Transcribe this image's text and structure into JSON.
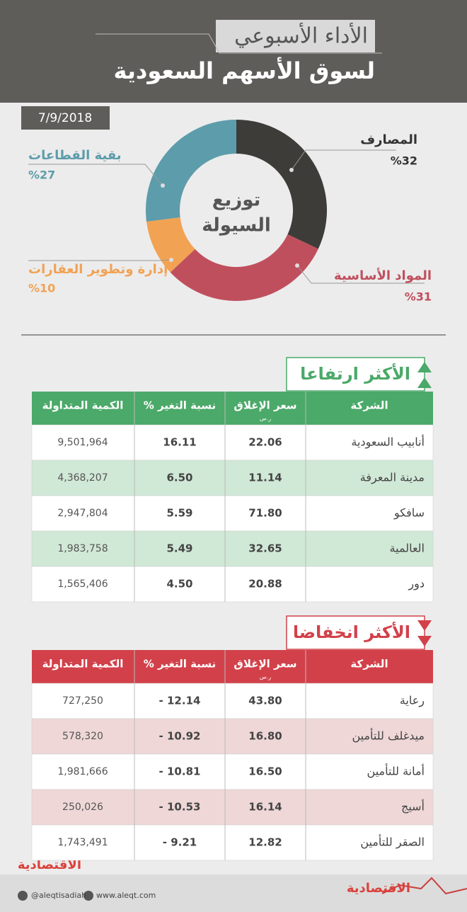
{
  "header": {
    "title": "الأداء الأسبوعي",
    "subtitle": "لسوق الأسهم السعودية"
  },
  "date": "7/9/2018",
  "chart_data": {
    "type": "donut",
    "center_label": [
      "توزيع",
      "السيولة"
    ],
    "categories": [
      "المصارف",
      "المواد الأساسية",
      "إدارة وتطوير العقارات",
      "بقية القطاعات"
    ],
    "values": [
      32,
      31,
      10,
      27
    ],
    "value_labels": [
      "%32",
      "%31",
      "%10",
      "%27"
    ],
    "colors": [
      "#3e3c39",
      "#c04f5d",
      "#f2a253",
      "#5d9cab"
    ]
  },
  "rising": {
    "title": "الأكثر ارتفاعا",
    "headers": [
      "الشركة",
      "سعر الإغلاق",
      "نسبة التغير %",
      "الكمية المتداولة"
    ],
    "currency": "ر.س",
    "rows": [
      [
        "أنابيب السعودية",
        "22.06",
        "16.11",
        "9,501,964"
      ],
      [
        "مدينة المعرفة",
        "11.14",
        "6.50",
        "4,368,207"
      ],
      [
        "سافكو",
        "71.80",
        "5.59",
        "2,947,804"
      ],
      [
        "العالمية",
        "32.65",
        "5.49",
        "1,983,758"
      ],
      [
        "دور",
        "20.88",
        "4.50",
        "1,565,406"
      ]
    ]
  },
  "falling": {
    "title": "الأكثر انخفاضا",
    "headers": [
      "الشركة",
      "سعر الإغلاق",
      "نسبة التغير %",
      "الكمية المتداولة"
    ],
    "currency": "ر.س",
    "rows": [
      [
        "رعاية",
        "43.80",
        "- 12.14",
        "727,250"
      ],
      [
        "ميدغلف للتأمين",
        "16.80",
        "- 10.92",
        "578,320"
      ],
      [
        "أمانة للتأمين",
        "16.50",
        "- 10.81",
        "1,981,666"
      ],
      [
        "أسيج",
        "16.14",
        "- 10.53",
        "250,026"
      ],
      [
        "الصقر للتأمين",
        "12.82",
        "- 9.21",
        "1,743,491"
      ]
    ]
  },
  "footer": {
    "logo": "الاقتصادية",
    "twitter": "@aleqtisadiah",
    "website": "www.aleqt.com"
  }
}
